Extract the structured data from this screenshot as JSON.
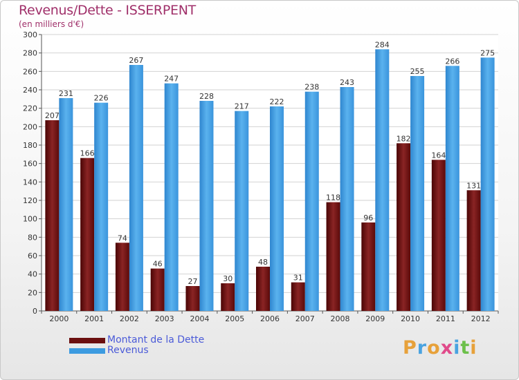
{
  "header": {
    "title": "Revenus/Dette - ISSERPENT",
    "subtitle": "(en milliers d'€)"
  },
  "legend": {
    "items": [
      {
        "label": "Montant de la Dette",
        "color": "#6b0f0f"
      },
      {
        "label": "Revenus",
        "color": "#3c9be0"
      }
    ]
  },
  "logo": {
    "letters": [
      "P",
      "r",
      "o",
      "x",
      "i",
      "t",
      "i"
    ],
    "colors": [
      "#e7a13a",
      "#4aa3e0",
      "#e7a13a",
      "#e04a8a",
      "#4aa3e0",
      "#6cc04a",
      "#e7a13a"
    ]
  },
  "chart_data": {
    "type": "bar",
    "categories": [
      "2000",
      "2001",
      "2002",
      "2003",
      "2004",
      "2005",
      "2006",
      "2007",
      "2008",
      "2009",
      "2010",
      "2011",
      "2012"
    ],
    "series": [
      {
        "name": "Montant de la Dette",
        "color": "#6b0f0f",
        "values": [
          207,
          166,
          74,
          46,
          27,
          30,
          48,
          31,
          118,
          96,
          182,
          164,
          131
        ]
      },
      {
        "name": "Revenus",
        "color": "#3c9be0",
        "values": [
          231,
          226,
          267,
          247,
          228,
          217,
          222,
          238,
          243,
          284,
          255,
          266,
          275
        ]
      }
    ],
    "title": "Revenus/Dette - ISSERPENT",
    "ylabel": "(en milliers d'€)",
    "yticks": [
      0,
      20,
      40,
      60,
      80,
      100,
      120,
      140,
      160,
      180,
      200,
      220,
      240,
      260,
      280,
      300
    ],
    "ylim": [
      0,
      300
    ],
    "grid": true,
    "legend_position": "bottom-left"
  }
}
